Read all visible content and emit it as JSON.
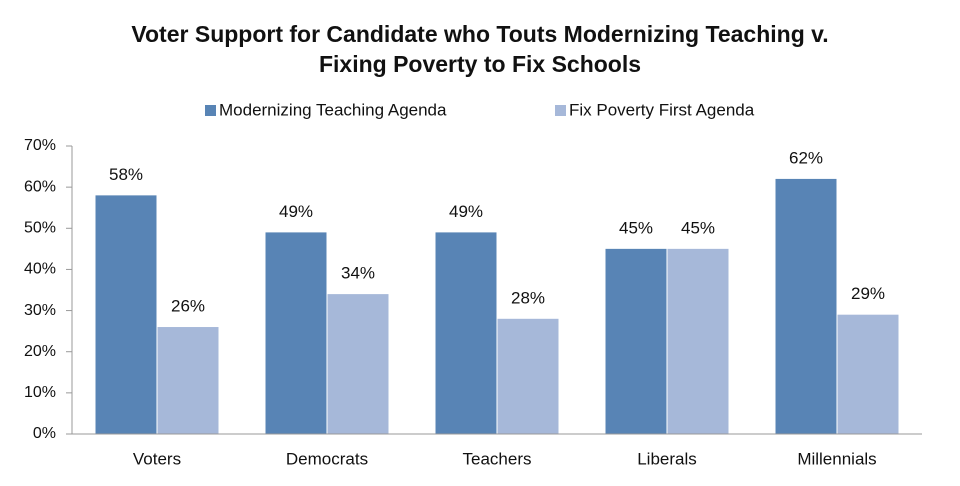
{
  "chart_data": {
    "type": "bar",
    "title": [
      "Voter Support for Candidate who Touts Modernizing Teaching v.",
      "Fixing Poverty to Fix Schools"
    ],
    "categories": [
      "Voters",
      "Democrats",
      "Teachers",
      "Liberals",
      "Millennials"
    ],
    "series": [
      {
        "name": "Modernizing Teaching Agenda",
        "color": "#5884b5",
        "values": [
          58,
          49,
          49,
          45,
          62
        ],
        "value_labels": [
          "58%",
          "49%",
          "49%",
          "45%",
          "62%"
        ]
      },
      {
        "name": "Fix Poverty First Agenda",
        "color": "#a6b8d9",
        "values": [
          26,
          34,
          28,
          45,
          29
        ],
        "value_labels": [
          "26%",
          "34%",
          "28%",
          "45%",
          "29%"
        ]
      }
    ],
    "ylim": [
      0,
      70
    ],
    "yticks": [
      {
        "value": 0,
        "label": "0%"
      },
      {
        "value": 10,
        "label": "10%"
      },
      {
        "value": 20,
        "label": "20%"
      },
      {
        "value": 30,
        "label": "30%"
      },
      {
        "value": 40,
        "label": "40%"
      },
      {
        "value": 50,
        "label": "50%"
      },
      {
        "value": 60,
        "label": "60%"
      },
      {
        "value": 70,
        "label": "70%"
      }
    ],
    "grid": false,
    "legend": "top"
  }
}
